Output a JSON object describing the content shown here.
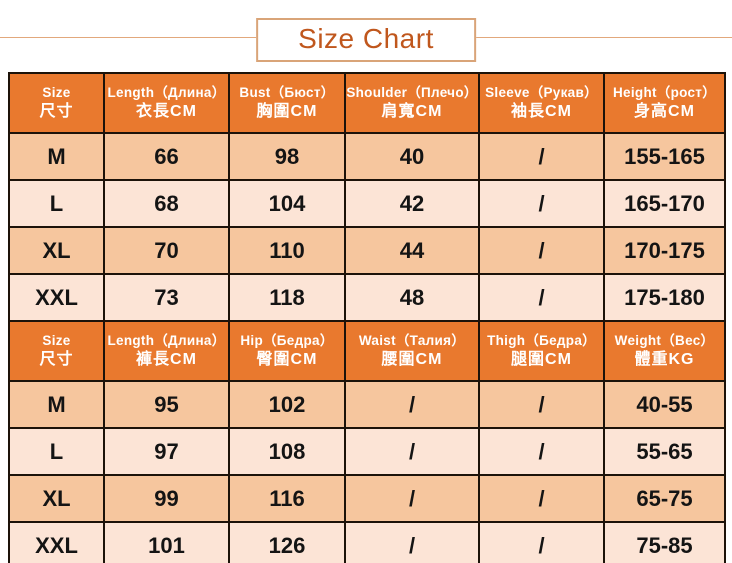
{
  "page": {
    "title": "Size Chart"
  },
  "colors": {
    "header_bg": "#e9792e",
    "row_dark": "#f6c69e",
    "row_light": "#fce4d6",
    "title_text": "#c0571d",
    "title_border": "#d9a478",
    "cell_border": "#1c1209",
    "background": "#ffffff"
  },
  "chart_data": {
    "type": "table",
    "title": "Size Chart",
    "sections": [
      {
        "headers": [
          {
            "en": "Size",
            "cjk": "尺寸"
          },
          {
            "en": "Length（Длина）",
            "cjk": "衣長CM"
          },
          {
            "en": "Bust（Бюст）",
            "cjk": "胸圍CM"
          },
          {
            "en": "Shoulder（Плечо）",
            "cjk": "肩寬CM"
          },
          {
            "en": "Sleeve（Рукав）",
            "cjk": "袖長CM"
          },
          {
            "en": "Height（рост）",
            "cjk": "身高CM"
          }
        ],
        "rows": [
          [
            "M",
            "66",
            "98",
            "40",
            "/",
            "155-165"
          ],
          [
            "L",
            "68",
            "104",
            "42",
            "/",
            "165-170"
          ],
          [
            "XL",
            "70",
            "110",
            "44",
            "/",
            "170-175"
          ],
          [
            "XXL",
            "73",
            "118",
            "48",
            "/",
            "175-180"
          ]
        ]
      },
      {
        "headers": [
          {
            "en": "Size",
            "cjk": "尺寸"
          },
          {
            "en": "Length（Длина）",
            "cjk": "褲長CM"
          },
          {
            "en": "Hip（Бедра）",
            "cjk": "臀圍CM"
          },
          {
            "en": "Waist（Талия）",
            "cjk": "腰圍CM"
          },
          {
            "en": "Thigh（Бедра）",
            "cjk": "腿圍CM"
          },
          {
            "en": "Weight（Вес）",
            "cjk": "體重KG"
          }
        ],
        "rows": [
          [
            "M",
            "95",
            "102",
            "/",
            "/",
            "40-55"
          ],
          [
            "L",
            "97",
            "108",
            "/",
            "/",
            "55-65"
          ],
          [
            "XL",
            "99",
            "116",
            "/",
            "/",
            "65-75"
          ],
          [
            "XXL",
            "101",
            "126",
            "/",
            "/",
            "75-85"
          ]
        ]
      }
    ]
  }
}
